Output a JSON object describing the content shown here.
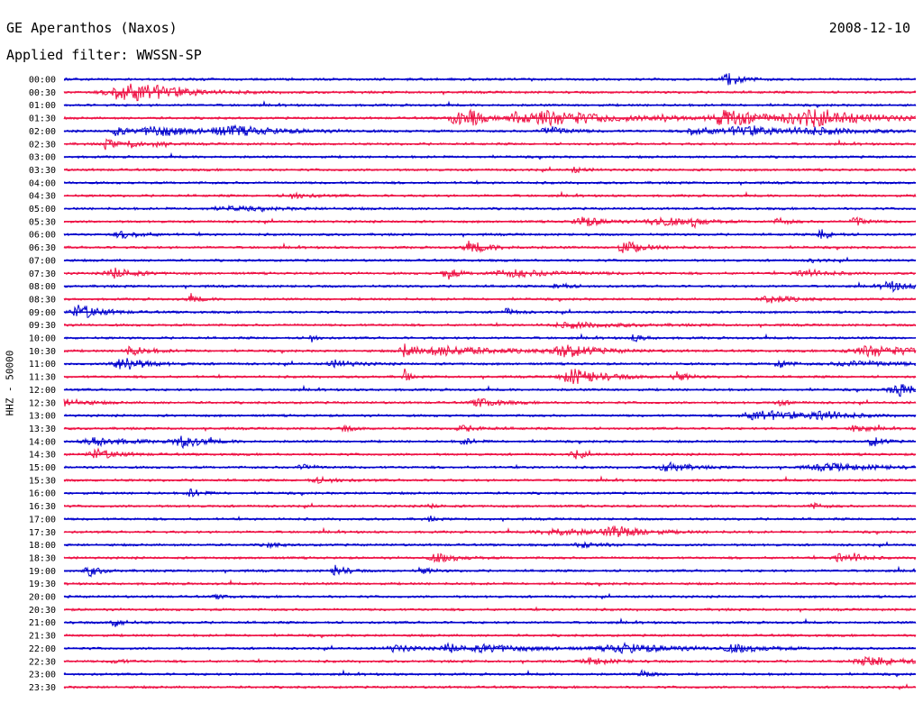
{
  "header": {
    "station": "GE Aperanthos (Naxos)",
    "date": "2008-12-10",
    "filter": "Applied filter: WWSSN-SP"
  },
  "axis": {
    "channel_label": "HHZ - 50000"
  },
  "colors": {
    "blue": "#0000cc",
    "red": "#ee1144",
    "background": "#ffffff",
    "text": "#000000"
  },
  "traces": [
    {
      "time": "00:00",
      "color": "blue",
      "events": [
        [
          0.78,
          1.0,
          0.012
        ]
      ]
    },
    {
      "time": "00:30",
      "color": "red",
      "events": [
        [
          0.07,
          1.0,
          0.035
        ],
        [
          0.1,
          0.5,
          0.04
        ]
      ]
    },
    {
      "time": "01:00",
      "color": "blue",
      "events": []
    },
    {
      "time": "01:30",
      "color": "red",
      "events": [
        [
          0.46,
          0.9,
          0.015
        ],
        [
          0.48,
          0.8,
          0.01
        ],
        [
          0.53,
          0.7,
          0.02
        ],
        [
          0.56,
          0.7,
          0.02
        ],
        [
          0.6,
          0.5,
          0.07
        ],
        [
          0.7,
          0.4,
          0.01
        ],
        [
          0.78,
          1.0,
          0.035
        ],
        [
          0.88,
          0.9,
          0.06
        ]
      ]
    },
    {
      "time": "02:00",
      "color": "blue",
      "events": [
        [
          0.06,
          0.6,
          0.01
        ],
        [
          0.11,
          0.6,
          0.04
        ],
        [
          0.2,
          0.5,
          0.05
        ],
        [
          0.57,
          0.5,
          0.02
        ],
        [
          0.74,
          0.5,
          0.02
        ],
        [
          0.8,
          0.5,
          0.05
        ],
        [
          0.88,
          0.3,
          0.05
        ]
      ]
    },
    {
      "time": "02:30",
      "color": "red",
      "events": [
        [
          0.05,
          0.6,
          0.01
        ],
        [
          0.08,
          0.4,
          0.01
        ],
        [
          0.11,
          0.3,
          0.01
        ]
      ]
    },
    {
      "time": "03:00",
      "color": "blue",
      "events": []
    },
    {
      "time": "03:30",
      "color": "red",
      "events": [
        [
          0.6,
          0.3,
          0.01
        ]
      ]
    },
    {
      "time": "04:00",
      "color": "blue",
      "events": []
    },
    {
      "time": "04:30",
      "color": "red",
      "events": [
        [
          0.27,
          0.3,
          0.02
        ]
      ]
    },
    {
      "time": "05:00",
      "color": "blue",
      "events": [
        [
          0.2,
          0.2,
          0.05
        ]
      ]
    },
    {
      "time": "05:30",
      "color": "red",
      "events": [
        [
          0.61,
          0.6,
          0.02
        ],
        [
          0.7,
          0.5,
          0.03
        ],
        [
          0.74,
          0.5,
          0.01
        ],
        [
          0.84,
          0.4,
          0.01
        ],
        [
          0.93,
          0.6,
          0.01
        ]
      ]
    },
    {
      "time": "06:00",
      "color": "blue",
      "events": [
        [
          0.07,
          0.4,
          0.02
        ],
        [
          0.89,
          0.6,
          0.01
        ]
      ]
    },
    {
      "time": "06:30",
      "color": "red",
      "events": [
        [
          0.48,
          0.6,
          0.02
        ],
        [
          0.66,
          0.7,
          0.02
        ]
      ]
    },
    {
      "time": "07:00",
      "color": "blue",
      "events": [
        [
          0.88,
          0.2,
          0.01
        ]
      ]
    },
    {
      "time": "07:30",
      "color": "red",
      "events": [
        [
          0.06,
          0.6,
          0.02
        ],
        [
          0.45,
          0.8,
          0.01
        ],
        [
          0.53,
          0.4,
          0.05
        ],
        [
          0.87,
          0.5,
          0.02
        ]
      ]
    },
    {
      "time": "08:00",
      "color": "blue",
      "events": [
        [
          0.58,
          0.5,
          0.01
        ],
        [
          0.97,
          0.6,
          0.02
        ]
      ]
    },
    {
      "time": "08:30",
      "color": "red",
      "events": [
        [
          0.15,
          0.4,
          0.01
        ],
        [
          0.83,
          0.5,
          0.02
        ]
      ]
    },
    {
      "time": "09:00",
      "color": "blue",
      "events": [
        [
          0.02,
          0.9,
          0.02
        ],
        [
          0.52,
          0.4,
          0.01
        ]
      ]
    },
    {
      "time": "09:30",
      "color": "red",
      "events": [
        [
          0.6,
          0.3,
          0.05
        ]
      ]
    },
    {
      "time": "10:00",
      "color": "blue",
      "events": [
        [
          0.29,
          0.5,
          0.005
        ],
        [
          0.67,
          0.4,
          0.01
        ]
      ]
    },
    {
      "time": "10:30",
      "color": "red",
      "events": [
        [
          0.08,
          0.5,
          0.02
        ],
        [
          0.4,
          0.8,
          0.01
        ],
        [
          0.45,
          0.5,
          0.06
        ],
        [
          0.59,
          0.7,
          0.03
        ],
        [
          0.95,
          0.6,
          0.05
        ]
      ]
    },
    {
      "time": "11:00",
      "color": "blue",
      "events": [
        [
          0.07,
          0.9,
          0.02
        ],
        [
          0.32,
          0.4,
          0.02
        ],
        [
          0.84,
          0.5,
          0.01
        ],
        [
          0.93,
          0.3,
          0.05
        ]
      ]
    },
    {
      "time": "11:30",
      "color": "red",
      "events": [
        [
          0.4,
          1.0,
          0.004
        ],
        [
          0.6,
          0.9,
          0.03
        ],
        [
          0.72,
          0.6,
          0.01
        ]
      ]
    },
    {
      "time": "12:00",
      "color": "blue",
      "events": [
        [
          0.98,
          0.8,
          0.02
        ]
      ]
    },
    {
      "time": "12:30",
      "color": "red",
      "events": [
        [
          0.0,
          0.5,
          0.02
        ],
        [
          0.49,
          0.5,
          0.02
        ],
        [
          0.84,
          0.3,
          0.01
        ]
      ]
    },
    {
      "time": "13:00",
      "color": "blue",
      "events": [
        [
          0.82,
          0.6,
          0.04
        ],
        [
          0.89,
          0.6,
          0.02
        ]
      ]
    },
    {
      "time": "13:30",
      "color": "red",
      "events": [
        [
          0.33,
          0.3,
          0.01
        ],
        [
          0.47,
          0.3,
          0.02
        ],
        [
          0.93,
          0.6,
          0.01
        ]
      ]
    },
    {
      "time": "14:00",
      "color": "blue",
      "events": [
        [
          0.04,
          0.5,
          0.03
        ],
        [
          0.14,
          0.7,
          0.02
        ],
        [
          0.47,
          0.4,
          0.01
        ],
        [
          0.95,
          0.6,
          0.01
        ]
      ]
    },
    {
      "time": "14:30",
      "color": "red",
      "events": [
        [
          0.04,
          0.6,
          0.02
        ],
        [
          0.6,
          0.5,
          0.01
        ]
      ]
    },
    {
      "time": "15:00",
      "color": "blue",
      "events": [
        [
          0.28,
          0.4,
          0.01
        ],
        [
          0.71,
          0.6,
          0.02
        ],
        [
          0.9,
          0.4,
          0.05
        ]
      ]
    },
    {
      "time": "15:30",
      "color": "red",
      "events": [
        [
          0.3,
          0.3,
          0.02
        ]
      ]
    },
    {
      "time": "16:00",
      "color": "blue",
      "events": [
        [
          0.15,
          0.5,
          0.01
        ]
      ]
    },
    {
      "time": "16:30",
      "color": "red",
      "events": [
        [
          0.43,
          0.2,
          0.01
        ],
        [
          0.88,
          0.3,
          0.01
        ]
      ]
    },
    {
      "time": "17:00",
      "color": "blue",
      "events": [
        [
          0.43,
          0.3,
          0.005
        ]
      ]
    },
    {
      "time": "17:30",
      "color": "red",
      "events": [
        [
          0.58,
          0.4,
          0.04
        ],
        [
          0.65,
          0.6,
          0.03
        ]
      ]
    },
    {
      "time": "18:00",
      "color": "blue",
      "events": [
        [
          0.24,
          0.3,
          0.01
        ],
        [
          0.61,
          0.3,
          0.02
        ]
      ]
    },
    {
      "time": "18:30",
      "color": "red",
      "events": [
        [
          0.44,
          0.5,
          0.02
        ],
        [
          0.91,
          0.7,
          0.01
        ],
        [
          0.93,
          0.4,
          0.01
        ]
      ]
    },
    {
      "time": "19:00",
      "color": "blue",
      "events": [
        [
          0.03,
          0.7,
          0.01
        ],
        [
          0.32,
          0.7,
          0.01
        ],
        [
          0.42,
          0.4,
          0.01
        ]
      ]
    },
    {
      "time": "19:30",
      "color": "red",
      "events": []
    },
    {
      "time": "20:00",
      "color": "blue",
      "events": [
        [
          0.18,
          0.2,
          0.01
        ]
      ]
    },
    {
      "time": "20:30",
      "color": "red",
      "events": []
    },
    {
      "time": "21:00",
      "color": "blue",
      "events": [
        [
          0.06,
          0.5,
          0.01
        ]
      ]
    },
    {
      "time": "21:30",
      "color": "red",
      "events": []
    },
    {
      "time": "22:00",
      "color": "blue",
      "events": [
        [
          0.39,
          0.4,
          0.02
        ],
        [
          0.45,
          0.7,
          0.01
        ],
        [
          0.5,
          0.4,
          0.05
        ],
        [
          0.66,
          0.5,
          0.05
        ],
        [
          0.79,
          0.4,
          0.03
        ]
      ]
    },
    {
      "time": "22:30",
      "color": "red",
      "events": [
        [
          0.06,
          0.3,
          0.01
        ],
        [
          0.62,
          0.4,
          0.02
        ],
        [
          0.95,
          0.5,
          0.04
        ]
      ]
    },
    {
      "time": "23:00",
      "color": "blue",
      "events": [
        [
          0.68,
          0.4,
          0.01
        ]
      ]
    },
    {
      "time": "23:30",
      "color": "red",
      "events": []
    }
  ]
}
